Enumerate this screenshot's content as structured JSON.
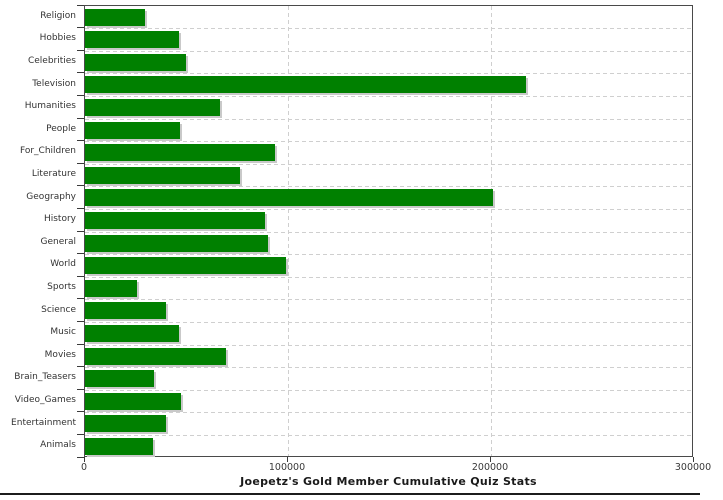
{
  "chart_data": {
    "type": "bar",
    "orientation": "horizontal",
    "title": "Joepetz's Gold Member Cumulative Quiz Stats",
    "categories": [
      "Religion",
      "Hobbies",
      "Celebrities",
      "Television",
      "Humanities",
      "People",
      "For_Children",
      "Literature",
      "Geography",
      "History",
      "General",
      "World",
      "Sports",
      "Science",
      "Music",
      "Movies",
      "Brain_Teasers",
      "Video_Games",
      "Entertainment",
      "Animals"
    ],
    "values": [
      29500,
      46500,
      49500,
      217000,
      66500,
      47000,
      93500,
      76500,
      201000,
      88500,
      90000,
      99000,
      25500,
      40000,
      46500,
      69500,
      34000,
      47500,
      40000,
      33500
    ],
    "xlabel": "",
    "ylabel": "",
    "xlim": [
      0,
      300000
    ],
    "x_ticks": [
      0,
      100000,
      200000,
      300000
    ],
    "x_tick_labels": [
      "0",
      "100000",
      "200000",
      "300000"
    ],
    "grid": "dashed-category-and-range",
    "legend": "none",
    "bar_color": "#008000",
    "shadow_color": "#c9c9c9",
    "gridline_color": "#cfcfcf",
    "axis_color": "#3a3a3a",
    "label_color": "#333333",
    "background_color": "#ffffff"
  }
}
